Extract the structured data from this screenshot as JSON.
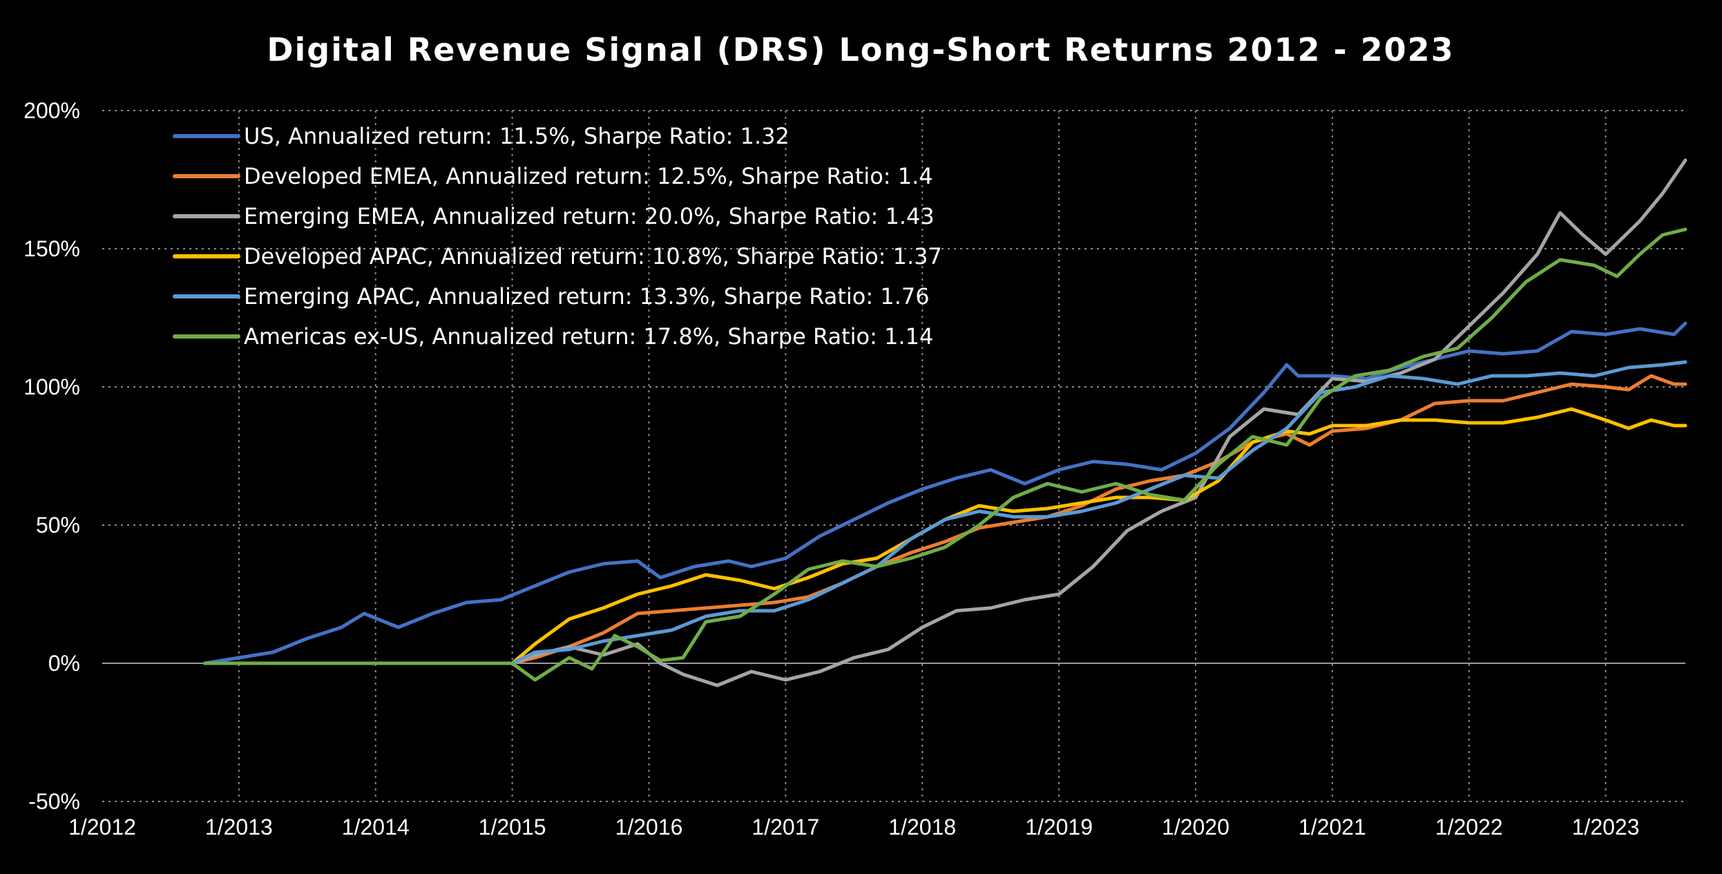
{
  "chart_data": {
    "type": "line",
    "title": "Digital Revenue Signal (DRS) Long-Short Returns 2012 - 2023",
    "xlabel": "",
    "ylabel": "",
    "x_tick_labels": [
      "1/2012",
      "1/2013",
      "1/2014",
      "1/2015",
      "1/2016",
      "1/2017",
      "1/2018",
      "1/2019",
      "1/2020",
      "1/2021",
      "1/2022",
      "1/2023"
    ],
    "x_range": [
      "2012-01",
      "2023-08"
    ],
    "y_tick_labels": [
      "200%",
      "150%",
      "100%",
      "50%",
      "0%",
      "-50%"
    ],
    "ylim": [
      -50,
      200
    ],
    "grid": "dotted",
    "legend_position": "top-left",
    "series": [
      {
        "name": "US, Annualized return: 11.5%, Sharpe Ratio: 1.32",
        "color": "#4472C4",
        "points": [
          [
            "2012-10",
            0
          ],
          [
            "2013-01",
            2
          ],
          [
            "2013-04",
            4
          ],
          [
            "2013-07",
            9
          ],
          [
            "2013-10",
            13
          ],
          [
            "2013-12",
            18
          ],
          [
            "2014-03",
            13
          ],
          [
            "2014-06",
            18
          ],
          [
            "2014-09",
            22
          ],
          [
            "2014-12",
            23
          ],
          [
            "2015-03",
            28
          ],
          [
            "2015-06",
            33
          ],
          [
            "2015-09",
            36
          ],
          [
            "2015-12",
            37
          ],
          [
            "2016-02",
            31
          ],
          [
            "2016-05",
            35
          ],
          [
            "2016-08",
            37
          ],
          [
            "2016-10",
            35
          ],
          [
            "2017-01",
            38
          ],
          [
            "2017-04",
            46
          ],
          [
            "2017-07",
            52
          ],
          [
            "2017-10",
            58
          ],
          [
            "2018-01",
            63
          ],
          [
            "2018-04",
            67
          ],
          [
            "2018-07",
            70
          ],
          [
            "2018-10",
            65
          ],
          [
            "2019-01",
            70
          ],
          [
            "2019-04",
            73
          ],
          [
            "2019-07",
            72
          ],
          [
            "2019-10",
            70
          ],
          [
            "2020-01",
            76
          ],
          [
            "2020-04",
            85
          ],
          [
            "2020-07",
            98
          ],
          [
            "2020-09",
            108
          ],
          [
            "2020-10",
            104
          ],
          [
            "2021-01",
            104
          ],
          [
            "2021-04",
            103
          ],
          [
            "2021-07",
            107
          ],
          [
            "2021-10",
            110
          ],
          [
            "2022-01",
            113
          ],
          [
            "2022-04",
            112
          ],
          [
            "2022-07",
            113
          ],
          [
            "2022-10",
            120
          ],
          [
            "2023-01",
            119
          ],
          [
            "2023-04",
            121
          ],
          [
            "2023-07",
            119
          ],
          [
            "2023-08",
            123
          ]
        ]
      },
      {
        "name": "Developed EMEA, Annualized return: 12.5%, Sharpe Ratio: 1.4",
        "color": "#ED7D31",
        "points": [
          [
            "2012-10",
            0
          ],
          [
            "2015-01",
            0
          ],
          [
            "2015-03",
            2
          ],
          [
            "2015-06",
            6
          ],
          [
            "2015-09",
            11
          ],
          [
            "2015-12",
            18
          ],
          [
            "2016-03",
            19
          ],
          [
            "2016-06",
            20
          ],
          [
            "2016-09",
            21
          ],
          [
            "2016-12",
            22
          ],
          [
            "2017-03",
            24
          ],
          [
            "2017-06",
            29
          ],
          [
            "2017-09",
            35
          ],
          [
            "2017-12",
            40
          ],
          [
            "2018-03",
            44
          ],
          [
            "2018-06",
            49
          ],
          [
            "2018-09",
            51
          ],
          [
            "2018-12",
            53
          ],
          [
            "2019-03",
            57
          ],
          [
            "2019-06",
            63
          ],
          [
            "2019-09",
            66
          ],
          [
            "2019-12",
            68
          ],
          [
            "2020-03",
            73
          ],
          [
            "2020-06",
            80
          ],
          [
            "2020-09",
            83
          ],
          [
            "2020-11",
            79
          ],
          [
            "2021-01",
            84
          ],
          [
            "2021-04",
            85
          ],
          [
            "2021-07",
            88
          ],
          [
            "2021-10",
            94
          ],
          [
            "2022-01",
            95
          ],
          [
            "2022-04",
            95
          ],
          [
            "2022-07",
            98
          ],
          [
            "2022-10",
            101
          ],
          [
            "2023-01",
            100
          ],
          [
            "2023-03",
            99
          ],
          [
            "2023-05",
            104
          ],
          [
            "2023-07",
            101
          ],
          [
            "2023-08",
            101
          ]
        ]
      },
      {
        "name": "Emerging EMEA, Annualized return: 20.0%, Sharpe Ratio: 1.43",
        "color": "#A5A5A5",
        "points": [
          [
            "2012-10",
            0
          ],
          [
            "2015-01",
            0
          ],
          [
            "2015-03",
            3
          ],
          [
            "2015-06",
            6
          ],
          [
            "2015-09",
            3
          ],
          [
            "2015-12",
            7
          ],
          [
            "2016-02",
            0
          ],
          [
            "2016-04",
            -4
          ],
          [
            "2016-07",
            -8
          ],
          [
            "2016-10",
            -3
          ],
          [
            "2017-01",
            -6
          ],
          [
            "2017-04",
            -3
          ],
          [
            "2017-07",
            2
          ],
          [
            "2017-10",
            5
          ],
          [
            "2018-01",
            13
          ],
          [
            "2018-04",
            19
          ],
          [
            "2018-07",
            20
          ],
          [
            "2018-10",
            23
          ],
          [
            "2019-01",
            25
          ],
          [
            "2019-04",
            35
          ],
          [
            "2019-07",
            48
          ],
          [
            "2019-10",
            55
          ],
          [
            "2020-01",
            60
          ],
          [
            "2020-04",
            82
          ],
          [
            "2020-07",
            92
          ],
          [
            "2020-10",
            90
          ],
          [
            "2021-01",
            103
          ],
          [
            "2021-04",
            102
          ],
          [
            "2021-07",
            105
          ],
          [
            "2021-10",
            110
          ],
          [
            "2022-01",
            122
          ],
          [
            "2022-04",
            134
          ],
          [
            "2022-07",
            148
          ],
          [
            "2022-09",
            163
          ],
          [
            "2022-11",
            155
          ],
          [
            "2023-01",
            148
          ],
          [
            "2023-04",
            160
          ],
          [
            "2023-06",
            170
          ],
          [
            "2023-08",
            182
          ]
        ]
      },
      {
        "name": "Developed APAC, Annualized return: 10.8%, Sharpe Ratio: 1.37",
        "color": "#FFC000",
        "points": [
          [
            "2012-10",
            0
          ],
          [
            "2015-01",
            0
          ],
          [
            "2015-03",
            7
          ],
          [
            "2015-06",
            16
          ],
          [
            "2015-09",
            20
          ],
          [
            "2015-12",
            25
          ],
          [
            "2016-03",
            28
          ],
          [
            "2016-06",
            32
          ],
          [
            "2016-09",
            30
          ],
          [
            "2016-12",
            27
          ],
          [
            "2017-03",
            31
          ],
          [
            "2017-06",
            36
          ],
          [
            "2017-09",
            38
          ],
          [
            "2017-12",
            45
          ],
          [
            "2018-03",
            52
          ],
          [
            "2018-06",
            57
          ],
          [
            "2018-09",
            55
          ],
          [
            "2018-12",
            56
          ],
          [
            "2019-03",
            58
          ],
          [
            "2019-06",
            60
          ],
          [
            "2019-09",
            60
          ],
          [
            "2019-12",
            59
          ],
          [
            "2020-03",
            66
          ],
          [
            "2020-06",
            80
          ],
          [
            "2020-09",
            84
          ],
          [
            "2020-11",
            83
          ],
          [
            "2021-01",
            86
          ],
          [
            "2021-04",
            86
          ],
          [
            "2021-07",
            88
          ],
          [
            "2021-10",
            88
          ],
          [
            "2022-01",
            87
          ],
          [
            "2022-04",
            87
          ],
          [
            "2022-07",
            89
          ],
          [
            "2022-10",
            92
          ],
          [
            "2023-01",
            88
          ],
          [
            "2023-03",
            85
          ],
          [
            "2023-05",
            88
          ],
          [
            "2023-07",
            86
          ],
          [
            "2023-08",
            86
          ]
        ]
      },
      {
        "name": "Emerging APAC, Annualized return: 13.3%, Sharpe Ratio: 1.76",
        "color": "#5B9BD5",
        "points": [
          [
            "2012-10",
            0
          ],
          [
            "2015-01",
            0
          ],
          [
            "2015-03",
            4
          ],
          [
            "2015-06",
            5
          ],
          [
            "2015-09",
            8
          ],
          [
            "2015-12",
            10
          ],
          [
            "2016-03",
            12
          ],
          [
            "2016-06",
            17
          ],
          [
            "2016-09",
            19
          ],
          [
            "2016-12",
            19
          ],
          [
            "2017-03",
            23
          ],
          [
            "2017-06",
            29
          ],
          [
            "2017-09",
            35
          ],
          [
            "2017-12",
            45
          ],
          [
            "2018-03",
            52
          ],
          [
            "2018-06",
            55
          ],
          [
            "2018-09",
            53
          ],
          [
            "2018-12",
            53
          ],
          [
            "2019-03",
            55
          ],
          [
            "2019-06",
            58
          ],
          [
            "2019-09",
            63
          ],
          [
            "2019-12",
            68
          ],
          [
            "2020-03",
            67
          ],
          [
            "2020-06",
            77
          ],
          [
            "2020-09",
            85
          ],
          [
            "2020-12",
            98
          ],
          [
            "2021-03",
            100
          ],
          [
            "2021-06",
            104
          ],
          [
            "2021-09",
            103
          ],
          [
            "2021-12",
            101
          ],
          [
            "2022-03",
            104
          ],
          [
            "2022-06",
            104
          ],
          [
            "2022-09",
            105
          ],
          [
            "2022-12",
            104
          ],
          [
            "2023-03",
            107
          ],
          [
            "2023-06",
            108
          ],
          [
            "2023-08",
            109
          ]
        ]
      },
      {
        "name": "Americas ex-US, Annualized return: 17.8%, Sharpe Ratio: 1.14",
        "color": "#70AD47",
        "points": [
          [
            "2012-10",
            0
          ],
          [
            "2015-01",
            0
          ],
          [
            "2015-03",
            -6
          ],
          [
            "2015-06",
            2
          ],
          [
            "2015-08",
            -2
          ],
          [
            "2015-10",
            10
          ],
          [
            "2015-12",
            6
          ],
          [
            "2016-02",
            1
          ],
          [
            "2016-04",
            2
          ],
          [
            "2016-06",
            15
          ],
          [
            "2016-09",
            17
          ],
          [
            "2016-12",
            25
          ],
          [
            "2017-03",
            34
          ],
          [
            "2017-06",
            37
          ],
          [
            "2017-09",
            35
          ],
          [
            "2017-12",
            38
          ],
          [
            "2018-03",
            42
          ],
          [
            "2018-06",
            50
          ],
          [
            "2018-09",
            60
          ],
          [
            "2018-12",
            65
          ],
          [
            "2019-03",
            62
          ],
          [
            "2019-06",
            65
          ],
          [
            "2019-09",
            61
          ],
          [
            "2019-12",
            59
          ],
          [
            "2020-03",
            72
          ],
          [
            "2020-06",
            82
          ],
          [
            "2020-09",
            79
          ],
          [
            "2020-12",
            96
          ],
          [
            "2021-03",
            104
          ],
          [
            "2021-06",
            106
          ],
          [
            "2021-09",
            111
          ],
          [
            "2021-12",
            114
          ],
          [
            "2022-03",
            125
          ],
          [
            "2022-06",
            138
          ],
          [
            "2022-09",
            146
          ],
          [
            "2022-12",
            144
          ],
          [
            "2023-02",
            140
          ],
          [
            "2023-04",
            148
          ],
          [
            "2023-06",
            155
          ],
          [
            "2023-08",
            157
          ]
        ]
      }
    ]
  }
}
